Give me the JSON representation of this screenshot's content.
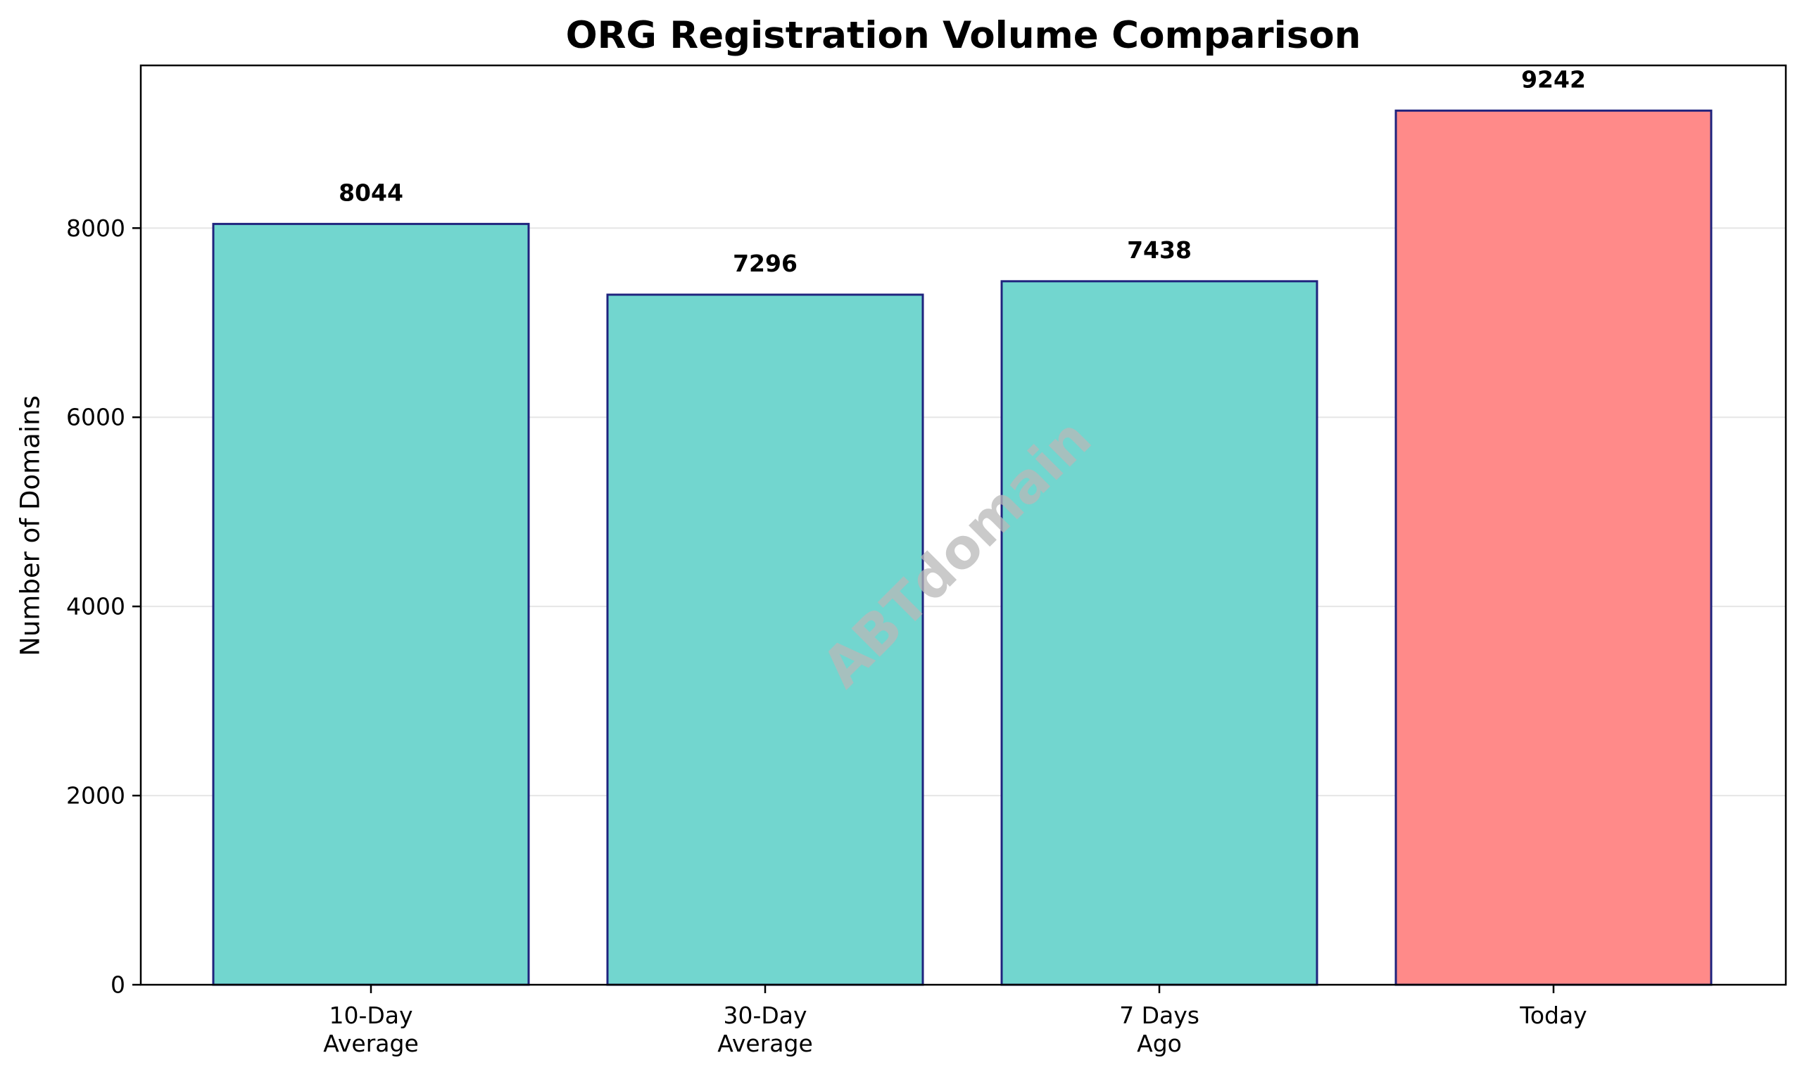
{
  "chart_data": {
    "type": "bar",
    "title": "ORG Registration Volume Comparison",
    "xlabel": "",
    "ylabel": "Number of Domains",
    "categories": [
      "10-Day Average",
      "30-Day Average",
      "7 Days Ago",
      "Today"
    ],
    "category_tick_lines": [
      [
        "10-Day",
        "Average"
      ],
      [
        "30-Day",
        "Average"
      ],
      [
        "7 Days",
        "Ago"
      ],
      [
        "Today"
      ]
    ],
    "values": [
      8044,
      7296,
      7438,
      9242
    ],
    "value_labels": [
      "8044",
      "7296",
      "7438",
      "9242"
    ],
    "ylim": [
      0,
      9720
    ],
    "yticks": [
      0,
      2000,
      4000,
      6000,
      8000
    ],
    "ytick_labels": [
      "0",
      "2000",
      "4000",
      "6000",
      "8000"
    ],
    "grid": "horizontal",
    "legend": "none",
    "colors": {
      "default_bar": "#72d6cf",
      "highlight_bar": "#ff8a89",
      "bar_edge": "#1f237d",
      "grid": "#e6e6e6",
      "axes": "#000000",
      "watermark": "#b8b8b8"
    },
    "highlight_index": 3,
    "watermark": "ABTdomain"
  }
}
